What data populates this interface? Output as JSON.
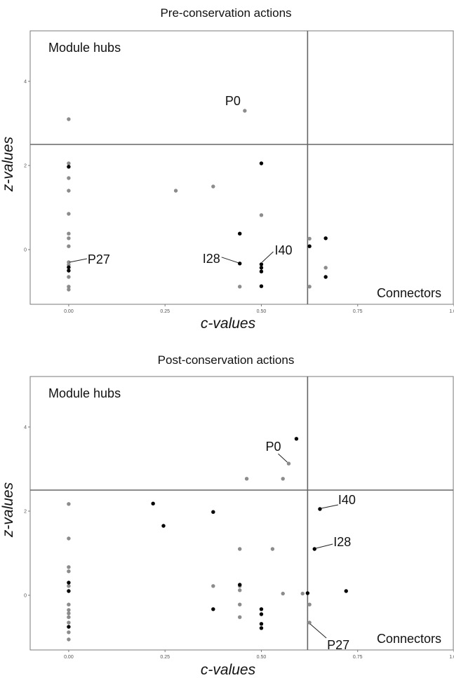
{
  "chart_data": [
    {
      "type": "scatter",
      "title": "Pre-conservation actions",
      "xlabel": "c-values",
      "ylabel": "z-values",
      "xlim": [
        -0.1,
        1.0
      ],
      "ylim": [
        -1.3,
        5.2
      ],
      "xticks": [
        0.0,
        0.25,
        0.5,
        0.75,
        1.0
      ],
      "xtick_labels": [
        "0.00",
        "0.25",
        "0.50",
        "0.75",
        "1.00"
      ],
      "yticks": [
        0,
        2,
        4
      ],
      "ytick_labels": [
        "0",
        "2",
        "4"
      ],
      "threshold_c": 0.62,
      "threshold_z": 2.5,
      "grid": false,
      "colors": {
        "grey": "#8c8c8c",
        "black": "#000000",
        "frame": "#7a7a7a",
        "threshold": "#666666"
      },
      "regions": {
        "top_left": "Module hubs",
        "bottom_right": "Connectors"
      },
      "series": [
        {
          "color": "grey",
          "points": [
            [
              0.0,
              3.1
            ],
            [
              0.0,
              2.05
            ],
            [
              0.0,
              1.7
            ],
            [
              0.0,
              1.4
            ],
            [
              0.0,
              0.85
            ],
            [
              0.0,
              0.38
            ],
            [
              0.0,
              0.27
            ],
            [
              0.0,
              0.08
            ],
            [
              0.0,
              -0.3
            ],
            [
              0.0,
              -0.36
            ],
            [
              0.0,
              -0.65
            ],
            [
              0.0,
              -0.88
            ],
            [
              0.0,
              -0.95
            ],
            [
              0.278,
              1.4
            ],
            [
              0.375,
              1.5
            ],
            [
              0.444,
              -0.88
            ],
            [
              0.457,
              3.3
            ],
            [
              0.5,
              0.82
            ],
            [
              0.625,
              0.26
            ],
            [
              0.625,
              -0.88
            ],
            [
              0.667,
              -0.43
            ]
          ]
        },
        {
          "color": "black",
          "points": [
            [
              0.0,
              1.97
            ],
            [
              0.0,
              -0.42
            ],
            [
              0.0,
              -0.5
            ],
            [
              0.444,
              0.38
            ],
            [
              0.444,
              -0.33
            ],
            [
              0.5,
              2.05
            ],
            [
              0.5,
              -0.35
            ],
            [
              0.5,
              -0.43
            ],
            [
              0.5,
              -0.52
            ],
            [
              0.5,
              -0.87
            ],
            [
              0.625,
              0.08
            ],
            [
              0.667,
              0.27
            ],
            [
              0.667,
              -0.65
            ]
          ]
        }
      ],
      "annotations": [
        {
          "text": "P0",
          "x": 0.457,
          "y": 3.3
        },
        {
          "text": "P27",
          "x": 0.0,
          "y": -0.3
        },
        {
          "text": "I28",
          "x": 0.444,
          "y": -0.33
        },
        {
          "text": "I40",
          "x": 0.5,
          "y": -0.35
        }
      ]
    },
    {
      "type": "scatter",
      "title": "Post-conservation actions",
      "xlabel": "c-values",
      "ylabel": "z-values",
      "xlim": [
        -0.1,
        1.0
      ],
      "ylim": [
        -1.3,
        5.2
      ],
      "xticks": [
        0.0,
        0.25,
        0.5,
        0.75,
        1.0
      ],
      "xtick_labels": [
        "0.00",
        "0.25",
        "0.50",
        "0.75",
        "1.00"
      ],
      "yticks": [
        0,
        2,
        4
      ],
      "ytick_labels": [
        "0",
        "2",
        "4"
      ],
      "threshold_c": 0.62,
      "threshold_z": 2.5,
      "grid": false,
      "colors": {
        "grey": "#8c8c8c",
        "black": "#000000",
        "frame": "#7a7a7a",
        "threshold": "#666666"
      },
      "regions": {
        "top_left": "Module hubs",
        "bottom_right": "Connectors"
      },
      "series": [
        {
          "color": "grey",
          "points": [
            [
              0.0,
              2.17
            ],
            [
              0.0,
              1.35
            ],
            [
              0.0,
              0.67
            ],
            [
              0.0,
              0.57
            ],
            [
              0.0,
              0.22
            ],
            [
              0.0,
              -0.22
            ],
            [
              0.0,
              -0.35
            ],
            [
              0.0,
              -0.43
            ],
            [
              0.0,
              -0.52
            ],
            [
              0.0,
              -0.65
            ],
            [
              0.0,
              -0.88
            ],
            [
              0.0,
              -1.05
            ],
            [
              0.375,
              0.22
            ],
            [
              0.444,
              1.1
            ],
            [
              0.444,
              0.22
            ],
            [
              0.444,
              0.12
            ],
            [
              0.444,
              -0.22
            ],
            [
              0.444,
              -0.52
            ],
            [
              0.462,
              2.77
            ],
            [
              0.529,
              1.1
            ],
            [
              0.556,
              0.04
            ],
            [
              0.556,
              2.77
            ],
            [
              0.571,
              3.13
            ],
            [
              0.607,
              0.04
            ],
            [
              0.625,
              -0.22
            ],
            [
              0.625,
              -0.65
            ]
          ]
        },
        {
          "color": "black",
          "points": [
            [
              0.0,
              0.3
            ],
            [
              0.0,
              0.1
            ],
            [
              0.0,
              -0.75
            ],
            [
              0.219,
              2.18
            ],
            [
              0.246,
              1.65
            ],
            [
              0.375,
              1.98
            ],
            [
              0.375,
              -0.33
            ],
            [
              0.444,
              0.25
            ],
            [
              0.5,
              -0.33
            ],
            [
              0.5,
              -0.45
            ],
            [
              0.5,
              -0.68
            ],
            [
              0.5,
              -0.78
            ],
            [
              0.591,
              3.72
            ],
            [
              0.62,
              0.05
            ],
            [
              0.638,
              1.1
            ],
            [
              0.652,
              2.05
            ],
            [
              0.72,
              0.1
            ]
          ]
        }
      ],
      "annotations": [
        {
          "text": "P0",
          "x": 0.571,
          "y": 3.13
        },
        {
          "text": "I40",
          "x": 0.652,
          "y": 2.05
        },
        {
          "text": "I28",
          "x": 0.638,
          "y": 1.1
        },
        {
          "text": "P27",
          "x": 0.625,
          "y": -0.65
        }
      ]
    }
  ]
}
